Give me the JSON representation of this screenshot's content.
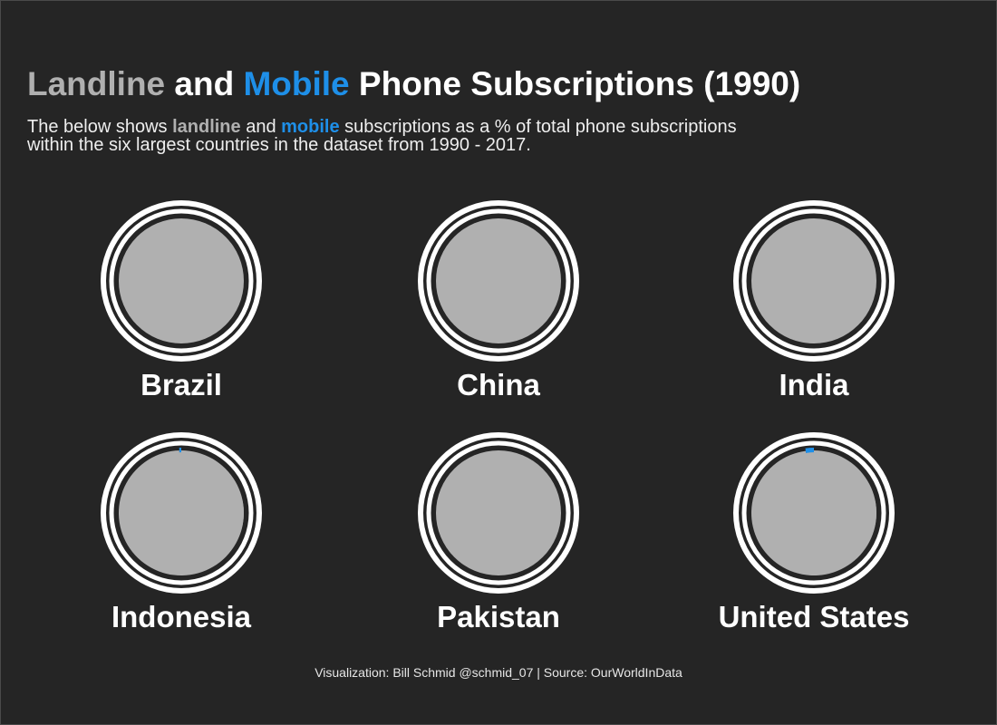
{
  "title": {
    "part1": "Landline",
    "part2": " and ",
    "part3": "Mobile",
    "part4": " Phone Subscriptions (1990)"
  },
  "subtitle": {
    "line1_a": "The below shows ",
    "line1_b": "landline",
    "line1_c": " and ",
    "line1_d": "mobile",
    "line1_e": " subscriptions as a % of total phone subscriptions",
    "line2": "within the six largest countries in the dataset from 1990 - 2017."
  },
  "caption": "Visualization: Bill Schmid @schmid_07 | Source: OurWorldInData",
  "colors": {
    "background": "#252525",
    "landline": "#b0b0b0",
    "mobile": "#1e8fe8",
    "ring": "#ffffff",
    "text": "#ffffff"
  },
  "chart_data": {
    "type": "pie",
    "year": 1990,
    "series": [
      "landline",
      "mobile"
    ],
    "countries": [
      {
        "name": "Brazil",
        "landline_pct": 100.0,
        "mobile_pct": 0.0
      },
      {
        "name": "China",
        "landline_pct": 100.0,
        "mobile_pct": 0.0
      },
      {
        "name": "India",
        "landline_pct": 100.0,
        "mobile_pct": 0.0
      },
      {
        "name": "Indonesia",
        "landline_pct": 99.5,
        "mobile_pct": 0.5
      },
      {
        "name": "Pakistan",
        "landline_pct": 100.0,
        "mobile_pct": 0.0
      },
      {
        "name": "United States",
        "landline_pct": 97.9,
        "mobile_pct": 2.1
      }
    ]
  }
}
